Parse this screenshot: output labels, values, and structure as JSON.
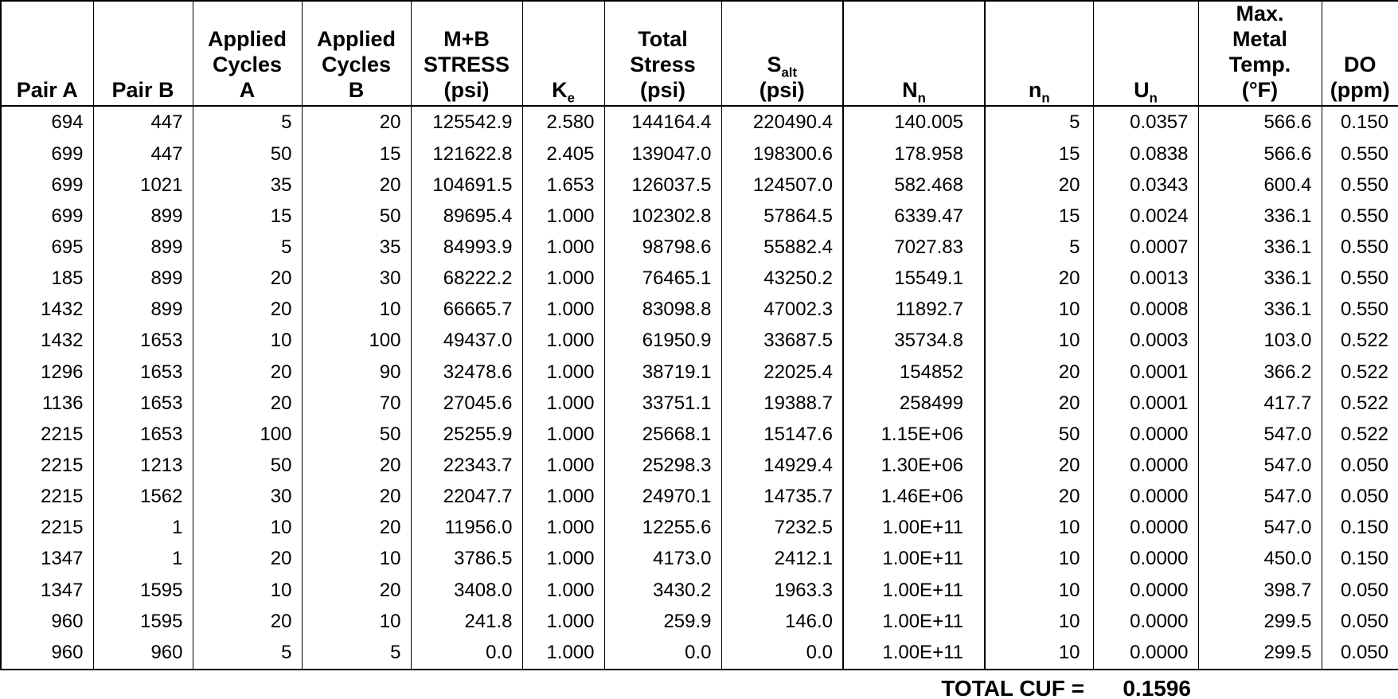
{
  "page": {
    "background": "#ffffff",
    "text_color": "#000000",
    "border_color": "#000000"
  },
  "table": {
    "columns": [
      {
        "id": "pair-a",
        "label": "Pair A"
      },
      {
        "id": "pair-b",
        "label": "Pair B"
      },
      {
        "id": "applied-cycles-a",
        "label": "Applied\nCycles\nA"
      },
      {
        "id": "applied-cycles-b",
        "label": "Applied\nCycles\nB"
      },
      {
        "id": "mb-stress",
        "label": "M+B\nSTRESS\n(psi)"
      },
      {
        "id": "ke",
        "base": "K",
        "sub": "e"
      },
      {
        "id": "total-stress",
        "label": "Total\nStress\n(psi)"
      },
      {
        "id": "s-alt",
        "base": "S",
        "sub": "alt",
        "after": "(psi)"
      },
      {
        "id": "n-upper",
        "base": "N",
        "sub": "n"
      },
      {
        "id": "n-lower",
        "base": "n",
        "sub": "n"
      },
      {
        "id": "u-n",
        "base": "U",
        "sub": "n"
      },
      {
        "id": "max-metal-temp",
        "label": "Max.\nMetal\nTemp.\n(°F)"
      },
      {
        "id": "do-ppm",
        "label": "DO\n(ppm)"
      }
    ],
    "rows": [
      [
        "694",
        "447",
        "5",
        "20",
        "125542.9",
        "2.580",
        "144164.4",
        "220490.4",
        "140.005",
        "5",
        "0.0357",
        "566.6",
        "0.150"
      ],
      [
        "699",
        "447",
        "50",
        "15",
        "121622.8",
        "2.405",
        "139047.0",
        "198300.6",
        "178.958",
        "15",
        "0.0838",
        "566.6",
        "0.550"
      ],
      [
        "699",
        "1021",
        "35",
        "20",
        "104691.5",
        "1.653",
        "126037.5",
        "124507.0",
        "582.468",
        "20",
        "0.0343",
        "600.4",
        "0.550"
      ],
      [
        "699",
        "899",
        "15",
        "50",
        "89695.4",
        "1.000",
        "102302.8",
        "57864.5",
        "6339.47",
        "15",
        "0.0024",
        "336.1",
        "0.550"
      ],
      [
        "695",
        "899",
        "5",
        "35",
        "84993.9",
        "1.000",
        "98798.6",
        "55882.4",
        "7027.83",
        "5",
        "0.0007",
        "336.1",
        "0.550"
      ],
      [
        "185",
        "899",
        "20",
        "30",
        "68222.2",
        "1.000",
        "76465.1",
        "43250.2",
        "15549.1",
        "20",
        "0.0013",
        "336.1",
        "0.550"
      ],
      [
        "1432",
        "899",
        "20",
        "10",
        "66665.7",
        "1.000",
        "83098.8",
        "47002.3",
        "11892.7",
        "10",
        "0.0008",
        "336.1",
        "0.550"
      ],
      [
        "1432",
        "1653",
        "10",
        "100",
        "49437.0",
        "1.000",
        "61950.9",
        "33687.5",
        "35734.8",
        "10",
        "0.0003",
        "103.0",
        "0.522"
      ],
      [
        "1296",
        "1653",
        "20",
        "90",
        "32478.6",
        "1.000",
        "38719.1",
        "22025.4",
        "154852",
        "20",
        "0.0001",
        "366.2",
        "0.522"
      ],
      [
        "1136",
        "1653",
        "20",
        "70",
        "27045.6",
        "1.000",
        "33751.1",
        "19388.7",
        "258499",
        "20",
        "0.0001",
        "417.7",
        "0.522"
      ],
      [
        "2215",
        "1653",
        "100",
        "50",
        "25255.9",
        "1.000",
        "25668.1",
        "15147.6",
        "1.15E+06",
        "50",
        "0.0000",
        "547.0",
        "0.522"
      ],
      [
        "2215",
        "1213",
        "50",
        "20",
        "22343.7",
        "1.000",
        "25298.3",
        "14929.4",
        "1.30E+06",
        "20",
        "0.0000",
        "547.0",
        "0.050"
      ],
      [
        "2215",
        "1562",
        "30",
        "20",
        "22047.7",
        "1.000",
        "24970.1",
        "14735.7",
        "1.46E+06",
        "20",
        "0.0000",
        "547.0",
        "0.050"
      ],
      [
        "2215",
        "1",
        "10",
        "20",
        "11956.0",
        "1.000",
        "12255.6",
        "7232.5",
        "1.00E+11",
        "10",
        "0.0000",
        "547.0",
        "0.150"
      ],
      [
        "1347",
        "1",
        "20",
        "10",
        "3786.5",
        "1.000",
        "4173.0",
        "2412.1",
        "1.00E+11",
        "10",
        "0.0000",
        "450.0",
        "0.150"
      ],
      [
        "1347",
        "1595",
        "10",
        "20",
        "3408.0",
        "1.000",
        "3430.2",
        "1963.3",
        "1.00E+11",
        "10",
        "0.0000",
        "398.7",
        "0.050"
      ],
      [
        "960",
        "1595",
        "20",
        "10",
        "241.8",
        "1.000",
        "259.9",
        "146.0",
        "1.00E+11",
        "10",
        "0.0000",
        "299.5",
        "0.050"
      ],
      [
        "960",
        "960",
        "5",
        "5",
        "0.0",
        "1.000",
        "0.0",
        "0.0",
        "1.00E+11",
        "10",
        "0.0000",
        "299.5",
        "0.050"
      ]
    ],
    "footer": {
      "label": "TOTAL CUF =",
      "value": "0.1596"
    }
  }
}
